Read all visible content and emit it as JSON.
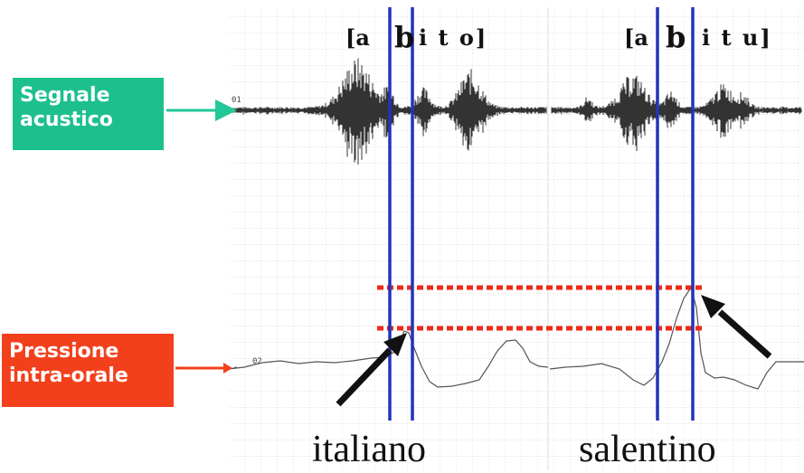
{
  "colors": {
    "signal_label_bg": "#1dc08c",
    "pressure_label_bg": "#f2401c",
    "marker_line": "#2233bb",
    "dotted_line": "#ee2a16",
    "arrow": "#111111",
    "grid": "#c9c9c9"
  },
  "labels": {
    "signal": [
      "Segnale",
      "acustico"
    ],
    "pressure": [
      "Pressione",
      "intra-orale"
    ]
  },
  "channels": {
    "ch1": "01",
    "ch2": "02"
  },
  "left_panel": {
    "transcription": {
      "open": "[a",
      "b": "b",
      "rest": "i t o]"
    },
    "word": "italiano"
  },
  "right_panel": {
    "transcription": {
      "open": "[a",
      "b": "b",
      "rest": "i t u]"
    },
    "word": "salentino"
  }
}
